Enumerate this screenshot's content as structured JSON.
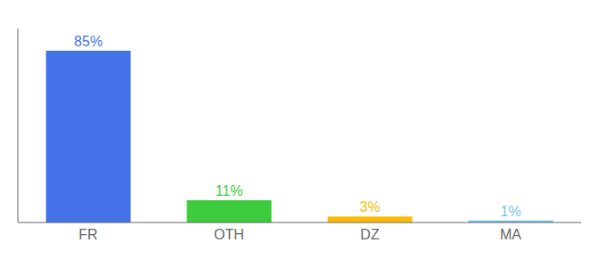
{
  "chart_data": {
    "type": "bar",
    "categories": [
      "FR",
      "OTH",
      "DZ",
      "MA"
    ],
    "values": [
      85,
      11,
      3,
      1
    ],
    "value_labels": [
      "85%",
      "11%",
      "3%",
      "1%"
    ],
    "colors": [
      "#4472e8",
      "#3dcc3d",
      "#fbbc04",
      "#74c2e8"
    ],
    "ylim": [
      0,
      96
    ],
    "data_labels": true,
    "tick_labels": "x",
    "grid": false
  }
}
